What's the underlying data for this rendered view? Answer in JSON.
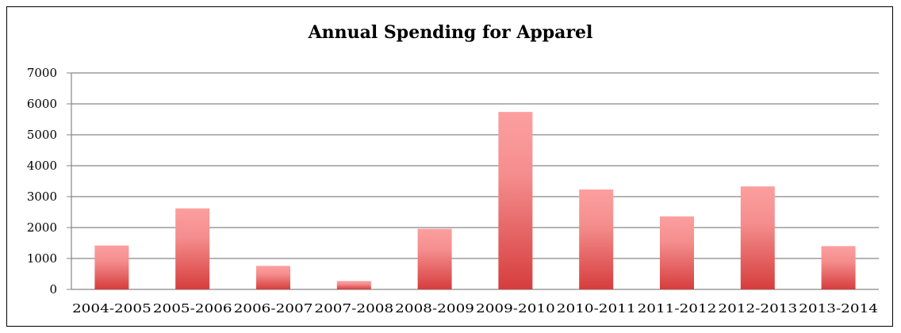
{
  "chart_data": {
    "type": "bar",
    "title": "Annual Spending for Apparel",
    "xlabel": "",
    "ylabel": "",
    "categories": [
      "2004-2005",
      "2005-2006",
      "2006-2007",
      "2007-2008",
      "2008-2009",
      "2009-2010",
      "2010-2011",
      "2011-2012",
      "2012-2013",
      "2013-2014"
    ],
    "values": [
      1420,
      2620,
      760,
      270,
      1960,
      5740,
      3230,
      2360,
      3330,
      1400
    ],
    "ylim": [
      0,
      7000
    ],
    "yticks": [
      "0",
      "1000",
      "2000",
      "3000",
      "4000",
      "5000",
      "6000",
      "7000"
    ],
    "grid": true,
    "bar_color_top": "#fc9f9f",
    "bar_color_bottom": "#d63d3d",
    "grid_color": "#868686"
  }
}
